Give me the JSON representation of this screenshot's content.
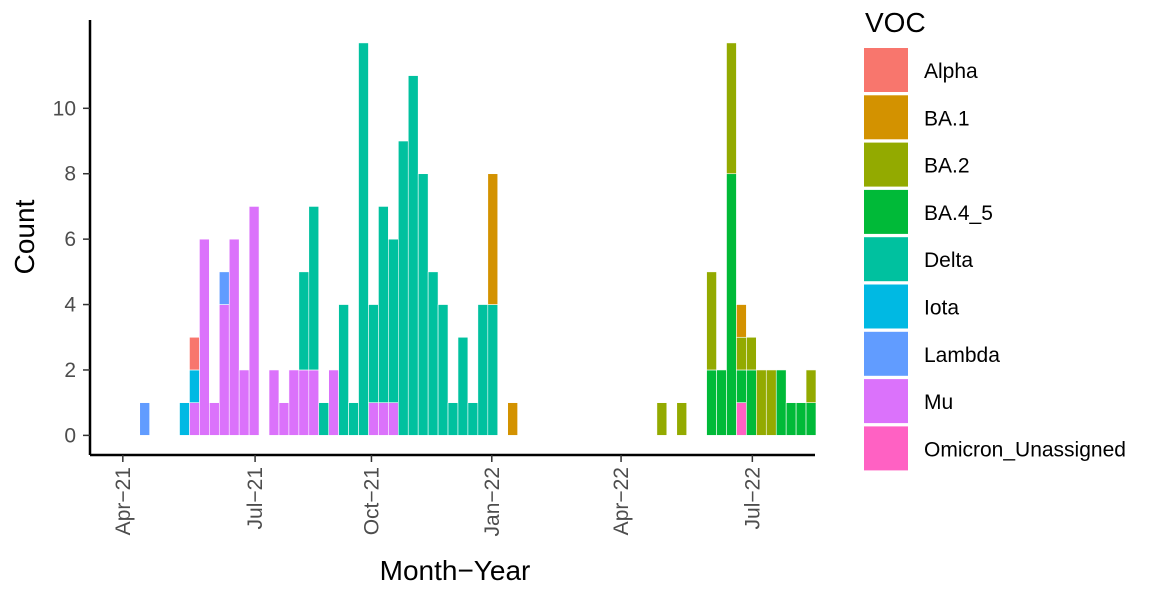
{
  "chart_data": {
    "type": "bar",
    "stacked": true,
    "x_label": "Month−Year",
    "y_label": "Count",
    "legend_title": "VOC",
    "legend_position": "right",
    "categories": [
      null,
      null,
      null,
      null,
      null,
      null,
      null,
      null,
      null,
      null,
      null,
      null,
      null,
      null,
      null,
      null,
      null,
      null,
      null,
      null,
      null,
      null,
      null,
      null,
      null,
      null,
      null,
      null,
      null,
      null,
      null,
      null,
      null,
      null,
      null,
      null,
      null,
      null,
      null,
      null,
      null,
      null,
      null,
      null,
      null,
      null,
      null,
      null,
      null,
      null,
      null,
      null,
      null,
      null,
      null,
      null,
      null,
      null,
      null,
      null,
      null,
      null,
      null,
      null,
      null,
      null,
      null,
      null
    ],
    "xlim": [
      -5.5,
      67.4
    ],
    "xticks": [
      {
        "value": -2.2,
        "label": "Apr−21"
      },
      {
        "value": 11.1,
        "label": "Jul−21"
      },
      {
        "value": 22.8,
        "label": "Oct−21"
      },
      {
        "value": 34.9,
        "label": "Jan−22"
      },
      {
        "value": 47.9,
        "label": "Apr−22"
      },
      {
        "value": 61.1,
        "label": "Jul−22"
      }
    ],
    "ylim": [
      -0.6,
      12.7
    ],
    "yticks": [
      0,
      2,
      4,
      6,
      8,
      10
    ],
    "series": [
      {
        "name": "Alpha",
        "color": "#f8766d",
        "values": [
          0,
          0,
          0,
          0,
          0,
          1,
          0,
          0,
          0,
          0,
          0,
          0,
          0,
          0,
          0,
          0,
          0,
          0,
          0,
          0,
          0,
          0,
          0,
          0,
          0,
          0,
          0,
          0,
          0,
          0,
          0,
          0,
          0,
          0,
          0,
          0,
          0,
          0,
          0,
          0,
          0,
          0,
          0,
          0,
          0,
          0,
          0,
          0,
          0,
          0,
          0,
          0,
          0,
          0,
          0,
          0,
          0,
          0,
          0,
          0,
          0,
          0,
          0,
          0,
          0,
          0,
          0,
          0
        ]
      },
      {
        "name": "BA.1",
        "color": "#d39200",
        "values": [
          0,
          0,
          0,
          0,
          0,
          0,
          0,
          0,
          0,
          0,
          0,
          0,
          0,
          0,
          0,
          0,
          0,
          0,
          0,
          0,
          0,
          0,
          0,
          0,
          0,
          0,
          0,
          0,
          0,
          0,
          0,
          0,
          0,
          0,
          0,
          4,
          0,
          1,
          0,
          0,
          0,
          0,
          0,
          0,
          0,
          0,
          0,
          0,
          0,
          0,
          0,
          0,
          0,
          0,
          0,
          0,
          0,
          0,
          0,
          0,
          1,
          0,
          0,
          0,
          0,
          0,
          0,
          0
        ]
      },
      {
        "name": "BA.2",
        "color": "#93aa00",
        "values": [
          0,
          0,
          0,
          0,
          0,
          0,
          0,
          0,
          0,
          0,
          0,
          0,
          0,
          0,
          0,
          0,
          0,
          0,
          0,
          0,
          0,
          0,
          0,
          0,
          0,
          0,
          0,
          0,
          0,
          0,
          0,
          0,
          0,
          0,
          0,
          0,
          0,
          0,
          0,
          0,
          0,
          0,
          0,
          0,
          0,
          0,
          0,
          0,
          0,
          0,
          0,
          0,
          1,
          0,
          1,
          0,
          0,
          3,
          0,
          4,
          1,
          1,
          2,
          2,
          0,
          0,
          0,
          1
        ]
      },
      {
        "name": "BA.4_5",
        "color": "#00ba38",
        "values": [
          0,
          0,
          0,
          0,
          0,
          0,
          0,
          0,
          0,
          0,
          0,
          0,
          0,
          0,
          0,
          0,
          0,
          0,
          0,
          0,
          0,
          0,
          0,
          0,
          0,
          0,
          0,
          0,
          0,
          0,
          0,
          0,
          0,
          0,
          0,
          0,
          0,
          0,
          0,
          0,
          0,
          0,
          0,
          0,
          0,
          0,
          0,
          0,
          0,
          0,
          0,
          0,
          0,
          0,
          0,
          0,
          0,
          2,
          2,
          8,
          1,
          2,
          0,
          0,
          2,
          1,
          1,
          1
        ]
      },
      {
        "name": "Delta",
        "color": "#00c19f",
        "values": [
          0,
          0,
          0,
          0,
          0,
          0,
          0,
          0,
          0,
          0,
          0,
          0,
          0,
          0,
          0,
          0,
          3,
          5,
          1,
          0,
          4,
          1,
          12,
          3,
          6,
          5,
          9,
          11,
          8,
          5,
          4,
          1,
          3,
          1,
          4,
          4,
          0,
          0,
          0,
          0,
          0,
          0,
          0,
          0,
          0,
          0,
          0,
          0,
          0,
          0,
          0,
          0,
          0,
          0,
          0,
          0,
          0,
          0,
          0,
          0,
          0,
          0,
          0,
          0,
          0,
          0,
          0,
          0
        ]
      },
      {
        "name": "Iota",
        "color": "#00b9e3",
        "values": [
          0,
          0,
          0,
          0,
          1,
          1,
          0,
          0,
          0,
          0,
          0,
          0,
          0,
          0,
          0,
          0,
          0,
          0,
          0,
          0,
          0,
          0,
          0,
          0,
          0,
          0,
          0,
          0,
          0,
          0,
          0,
          0,
          0,
          0,
          0,
          0,
          0,
          0,
          0,
          0,
          0,
          0,
          0,
          0,
          0,
          0,
          0,
          0,
          0,
          0,
          0,
          0,
          0,
          0,
          0,
          0,
          0,
          0,
          0,
          0,
          0,
          0,
          0,
          0,
          0,
          0,
          0,
          0
        ]
      },
      {
        "name": "Lambda",
        "color": "#619cff",
        "values": [
          1,
          0,
          0,
          0,
          0,
          0,
          0,
          0,
          1,
          0,
          0,
          0,
          0,
          0,
          0,
          0,
          0,
          0,
          0,
          0,
          0,
          0,
          0,
          0,
          0,
          0,
          0,
          0,
          0,
          0,
          0,
          0,
          0,
          0,
          0,
          0,
          0,
          0,
          0,
          0,
          0,
          0,
          0,
          0,
          0,
          0,
          0,
          0,
          0,
          0,
          0,
          0,
          0,
          0,
          0,
          0,
          0,
          0,
          0,
          0,
          0,
          0,
          0,
          0,
          0,
          0,
          0,
          0
        ]
      },
      {
        "name": "Mu",
        "color": "#db72fb",
        "values": [
          0,
          0,
          0,
          0,
          0,
          1,
          6,
          1,
          4,
          6,
          2,
          7,
          0,
          2,
          1,
          2,
          2,
          2,
          0,
          2,
          0,
          0,
          0,
          1,
          1,
          1,
          0,
          0,
          0,
          0,
          0,
          0,
          0,
          0,
          0,
          0,
          0,
          0,
          0,
          0,
          0,
          0,
          0,
          0,
          0,
          0,
          0,
          0,
          0,
          0,
          0,
          0,
          0,
          0,
          0,
          0,
          0,
          0,
          0,
          0,
          0,
          0,
          0,
          0,
          0,
          0,
          0,
          0
        ]
      },
      {
        "name": "Omicron_Unassigned",
        "color": "#ff61c3",
        "values": [
          0,
          0,
          0,
          0,
          0,
          0,
          0,
          0,
          0,
          0,
          0,
          0,
          0,
          0,
          0,
          0,
          0,
          0,
          0,
          0,
          0,
          0,
          0,
          0,
          0,
          0,
          0,
          0,
          0,
          0,
          0,
          0,
          0,
          0,
          0,
          0,
          0,
          0,
          0,
          0,
          0,
          0,
          0,
          0,
          0,
          0,
          0,
          0,
          0,
          0,
          0,
          0,
          0,
          0,
          0,
          0,
          0,
          0,
          0,
          0,
          1,
          0,
          0,
          0,
          0,
          0,
          0,
          0
        ]
      }
    ]
  }
}
